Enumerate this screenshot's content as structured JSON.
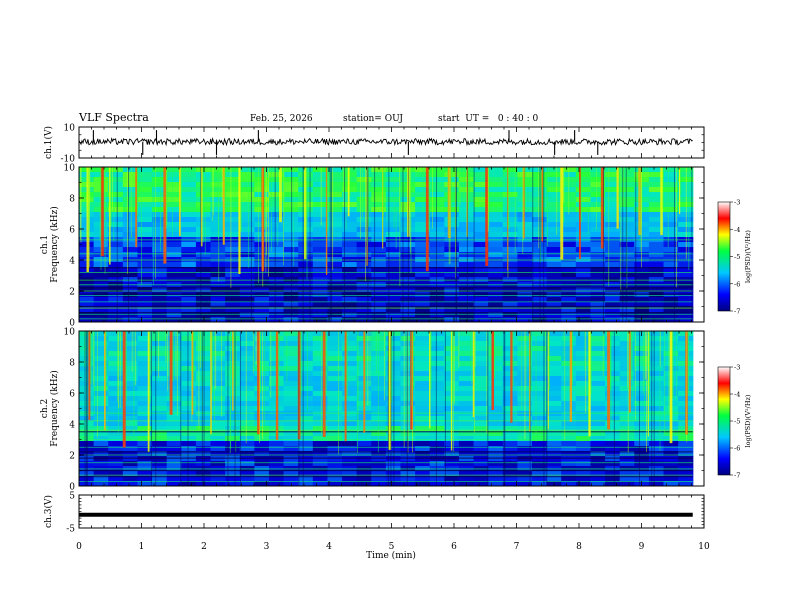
{
  "header": {
    "title": "VLF Spectra",
    "date": "Feb. 25, 2026",
    "station": "station= OUJ",
    "start": "start  UT =   0 : 40 : 0"
  },
  "chart_data": [
    {
      "type": "line",
      "name": "ch1-waveform",
      "ylabel": "ch.1(V)",
      "ylim": [
        -10,
        10
      ],
      "yticks": [
        "10",
        "-10"
      ],
      "x_range_min": [
        0,
        9.82
      ],
      "baseline_v": 0.5,
      "noise_amplitude_v": 2,
      "spike_times_min": [
        0.23,
        1.02,
        1.24,
        2.2,
        2.87,
        5.27,
        6.88,
        7.61,
        7.93,
        8.3
      ],
      "color": "#000000"
    },
    {
      "type": "heatmap",
      "name": "ch1-spectrogram",
      "ylabel_top": "ch.1",
      "ylabel": "Frequency (kHz)",
      "ylim": [
        0,
        10
      ],
      "yticks": [
        "0",
        "2",
        "4",
        "6",
        "8",
        "10"
      ],
      "x_range_min": [
        0,
        9.82
      ],
      "vlf_burst_times_min": [
        0.12,
        0.35,
        0.48,
        0.9,
        1.35,
        1.6,
        1.95,
        2.3,
        2.55,
        2.92,
        3.2,
        3.6,
        3.95,
        4.3,
        4.6,
        4.85,
        5.25,
        5.55,
        5.9,
        6.2,
        6.5,
        6.85,
        7.1,
        7.4,
        7.7,
        8.0,
        8.35,
        8.6,
        8.95,
        9.3,
        9.6
      ],
      "bright_lines_khz": [
        0.2,
        0.5,
        0.9,
        1.3,
        1.7,
        2.0,
        2.4,
        2.7,
        3.2,
        4.0,
        4.4,
        5.3
      ],
      "colorbar": {
        "label": "log(PSD)(V²/Hz)",
        "range": [
          -7,
          -3
        ],
        "ticks": [
          "-3",
          "-4",
          "-5",
          "-6",
          "-7"
        ]
      }
    },
    {
      "type": "heatmap",
      "name": "ch2-spectrogram",
      "ylabel_top": "ch.2",
      "ylabel": "Frequency (kHz)",
      "ylim": [
        0,
        10
      ],
      "yticks": [
        "0",
        "2",
        "4",
        "6",
        "8",
        "10"
      ],
      "x_range_min": [
        0,
        9.82
      ],
      "vlf_burst_times_min": [
        0.15,
        0.4,
        0.7,
        1.1,
        1.45,
        1.8,
        2.1,
        2.45,
        2.85,
        3.15,
        3.5,
        3.9,
        4.25,
        4.55,
        4.95,
        5.3,
        5.6,
        5.95,
        6.3,
        6.6,
        6.9,
        7.2,
        7.5,
        7.85,
        8.15,
        8.45,
        8.8,
        9.1,
        9.45,
        9.7
      ],
      "bright_lines_khz": [
        0.3,
        0.7,
        1.1,
        1.5,
        2.0,
        2.5,
        3.0,
        3.3,
        3.6,
        4.2,
        4.7
      ],
      "colorbar": {
        "label": "log(PSD)(V²/Hz)",
        "range": [
          -7,
          -3
        ],
        "ticks": [
          "-3",
          "-4",
          "-5",
          "-6",
          "-7"
        ]
      }
    },
    {
      "type": "line",
      "name": "ch3-trace",
      "ylabel": "ch.3(V)",
      "ylim": [
        -5,
        5
      ],
      "yticks": [
        "5",
        "-5"
      ],
      "x_range_min": [
        0,
        9.82
      ],
      "constant_value_v": -1,
      "color": "#000000"
    }
  ],
  "xaxis": {
    "xlabel": "Time (min)",
    "xlim": [
      0,
      10
    ],
    "ticks": [
      "0",
      "1",
      "2",
      "3",
      "4",
      "5",
      "6",
      "7",
      "8",
      "9",
      "10"
    ]
  }
}
